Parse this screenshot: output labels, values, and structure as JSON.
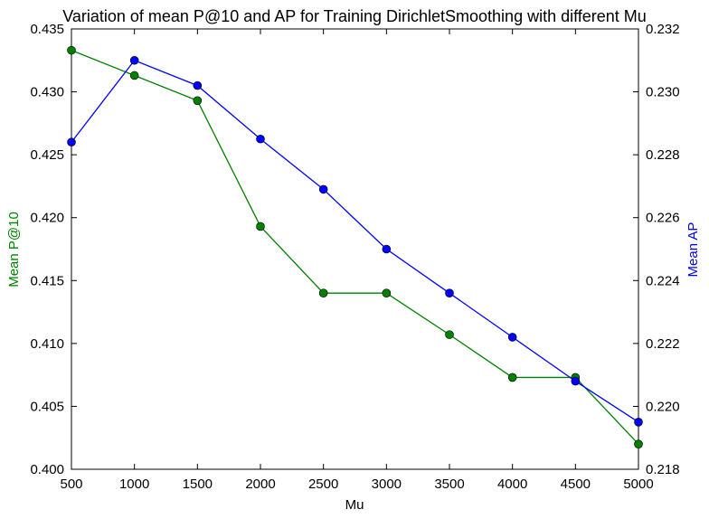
{
  "chart_data": {
    "type": "line",
    "title": "Variation of mean P@10 and AP for Training DirichletSmoothing with different Mu",
    "xlabel": "Mu",
    "ylabel_left": "Mean P@10",
    "ylabel_right": "Mean AP",
    "x": [
      500,
      1000,
      1500,
      2000,
      2500,
      3000,
      3500,
      4000,
      4500,
      5000
    ],
    "xlim": [
      500,
      5000
    ],
    "xticks": [
      "500",
      "1000",
      "1500",
      "2000",
      "2500",
      "3000",
      "3500",
      "4000",
      "4500",
      "5000"
    ],
    "ylim_left": [
      0.4,
      0.435
    ],
    "yticks_left": [
      "0.400",
      "0.405",
      "0.410",
      "0.415",
      "0.420",
      "0.425",
      "0.430",
      "0.435"
    ],
    "ylim_right": [
      0.218,
      0.232
    ],
    "yticks_right": [
      "0.218",
      "0.220",
      "0.222",
      "0.224",
      "0.226",
      "0.228",
      "0.230",
      "0.232"
    ],
    "grid": false,
    "series": [
      {
        "name": "Mean P@10",
        "axis": "left",
        "color": "#008000",
        "values": [
          0.4333,
          0.4313,
          0.4293,
          0.4193,
          0.414,
          0.414,
          0.4107,
          0.4073,
          0.4073,
          0.402
        ]
      },
      {
        "name": "Mean AP",
        "axis": "right",
        "color": "#0000ff",
        "values": [
          0.2284,
          0.231,
          0.2302,
          0.2285,
          0.2269,
          0.225,
          0.2236,
          0.2222,
          0.2208,
          0.2195
        ]
      }
    ]
  }
}
